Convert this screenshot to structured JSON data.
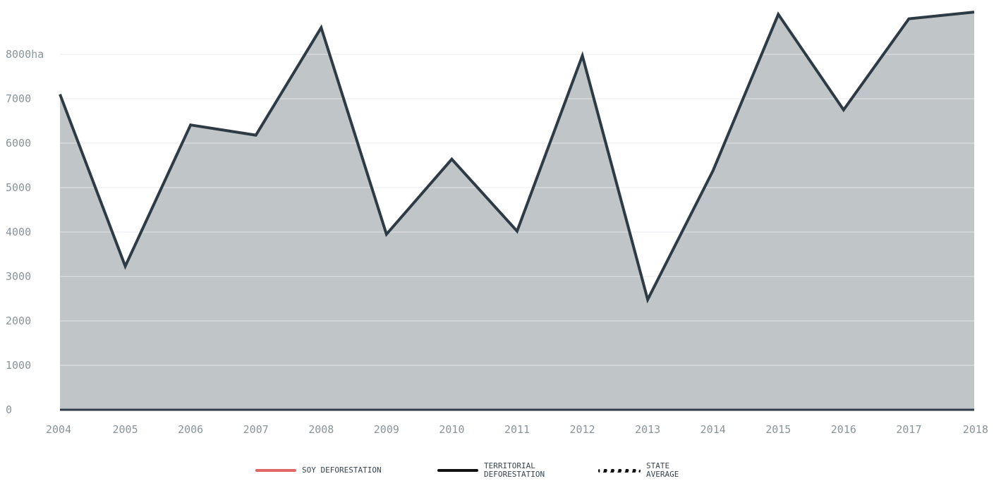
{
  "chart_data": {
    "type": "area",
    "title": "",
    "xlabel": "",
    "ylabel": "",
    "x": [
      "2004",
      "2005",
      "2006",
      "2007",
      "2008",
      "2009",
      "2010",
      "2011",
      "2012",
      "2013",
      "2014",
      "2015",
      "2016",
      "2017",
      "2018"
    ],
    "series": [
      {
        "name": "TERRITORIAL DEFORESTATION",
        "values": [
          7100,
          3230,
          6410,
          6180,
          8600,
          3950,
          5640,
          4020,
          7970,
          2480,
          5380,
          8900,
          6750,
          8800,
          8950
        ]
      }
    ],
    "ylim": [
      0,
      9000
    ],
    "y_ticks": [
      0,
      1000,
      2000,
      3000,
      4000,
      5000,
      6000,
      7000,
      8000
    ],
    "y_tick_labels": [
      "0",
      "1000",
      "2000",
      "3000",
      "4000",
      "5000",
      "6000",
      "7000",
      "8000ha"
    ],
    "grid": true,
    "legend_position": "bottom"
  },
  "legend": {
    "items": [
      {
        "label": "SOY DEFORESTATION",
        "color": "#e06666",
        "style": "solid"
      },
      {
        "label": "TERRITORIAL\nDEFORESTATION",
        "color": "#111111",
        "style": "solid"
      },
      {
        "label": "STATE\nAVERAGE",
        "color": "#111111",
        "style": "dotted"
      }
    ]
  },
  "colors": {
    "area_fill": "#c0c5c8",
    "line": "#2e3a44",
    "grid": "#e6e8ea",
    "axis": "#2e3a44"
  }
}
